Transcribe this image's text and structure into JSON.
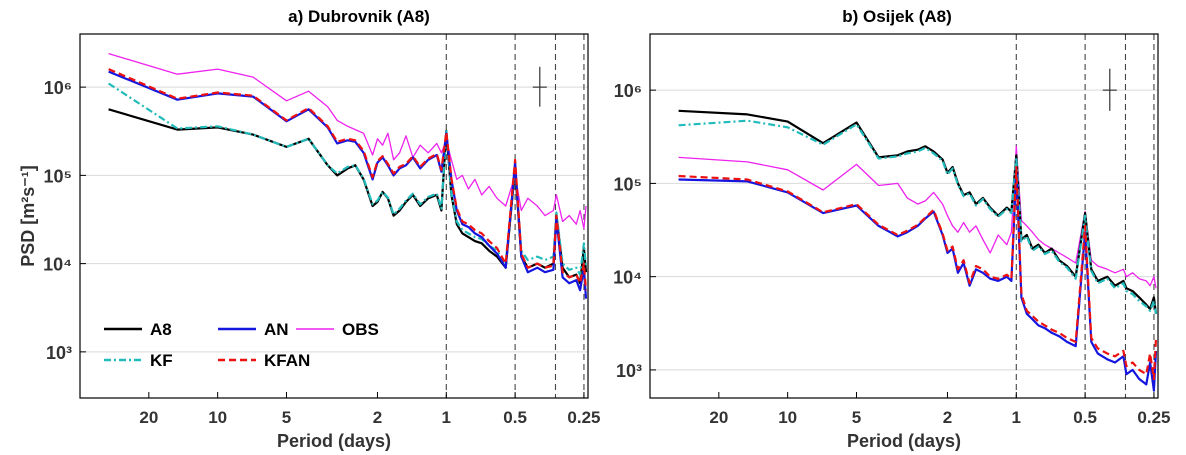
{
  "figure": {
    "ylabel": "PSD [m²s⁻¹]",
    "xlabel": "Period (days)",
    "legend": [
      {
        "label": "A8",
        "color": "#000000",
        "dash": "solid"
      },
      {
        "label": "AN",
        "color": "#1515e0",
        "dash": "solid"
      },
      {
        "label": "OBS",
        "color": "#ee22ee",
        "dash": "solid"
      },
      {
        "label": "KF",
        "color": "#22bbbb",
        "dash": "dashdot"
      },
      {
        "label": "KFAN",
        "color": "#ee1111",
        "dash": "dashed"
      }
    ]
  },
  "chart_data": [
    {
      "type": "line",
      "title": "a) Dubrovnik (A8)",
      "xlabel": "Period (days)",
      "ylabel": "PSD [m²s⁻¹]",
      "x_scale": "log, reversed",
      "y_scale": "log",
      "xlim": [
        40,
        0.24
      ],
      "ylim": [
        300,
        4000000
      ],
      "xticks": [
        20,
        10,
        5,
        2,
        1,
        0.5,
        0.25
      ],
      "xtick_labels": [
        "20",
        "10",
        "5",
        "2",
        "1",
        "0.5",
        "0.25"
      ],
      "yticks": [
        1000,
        10000,
        100000,
        1000000
      ],
      "ytick_labels": [
        "10³",
        "10⁴",
        "10⁵",
        "10⁶"
      ],
      "vlines": [
        1,
        0.5,
        0.333,
        0.25
      ],
      "grid": "horizontal at major y ticks",
      "legend_position": "bottom-left",
      "error_bar": {
        "x": 0.39,
        "y_center": 1000000,
        "y_low": 600000,
        "y_high": 1700000
      },
      "x": [
        30,
        15,
        10,
        7,
        5,
        4,
        3.3,
        3,
        2.7,
        2.5,
        2.3,
        2.1,
        2,
        1.9,
        1.8,
        1.7,
        1.6,
        1.5,
        1.4,
        1.3,
        1.2,
        1.1,
        1.05,
        1,
        0.95,
        0.9,
        0.85,
        0.8,
        0.75,
        0.7,
        0.65,
        0.6,
        0.55,
        0.5,
        0.47,
        0.44,
        0.4,
        0.37,
        0.34,
        0.33,
        0.31,
        0.29,
        0.27,
        0.26,
        0.25,
        0.245
      ],
      "series": [
        {
          "name": "A8",
          "values": [
            560000,
            330000,
            350000,
            290000,
            210000,
            260000,
            130000,
            100000,
            120000,
            130000,
            90000,
            45000,
            50000,
            65000,
            55000,
            35000,
            40000,
            50000,
            60000,
            45000,
            55000,
            60000,
            40000,
            320000,
            60000,
            28000,
            22000,
            20000,
            18000,
            17000,
            14000,
            12000,
            9000,
            120000,
            12000,
            9000,
            10000,
            9000,
            10000,
            35000,
            9000,
            7000,
            7500,
            6000,
            15000,
            8000
          ]
        },
        {
          "name": "KF",
          "values": [
            1100000,
            340000,
            360000,
            290000,
            210000,
            260000,
            130000,
            105000,
            125000,
            130000,
            92000,
            47000,
            52000,
            65000,
            56000,
            36000,
            42000,
            52000,
            62000,
            47000,
            57000,
            62000,
            42000,
            330000,
            62000,
            30000,
            24000,
            22000,
            20000,
            19000,
            16000,
            14000,
            10000,
            125000,
            14000,
            11000,
            12000,
            11000,
            12000,
            38000,
            10000,
            8500,
            9000,
            7500,
            17000,
            9000
          ]
        },
        {
          "name": "AN",
          "values": [
            1500000,
            720000,
            850000,
            780000,
            410000,
            560000,
            350000,
            230000,
            250000,
            240000,
            180000,
            90000,
            140000,
            160000,
            130000,
            100000,
            120000,
            130000,
            160000,
            120000,
            150000,
            170000,
            110000,
            300000,
            90000,
            40000,
            28000,
            26000,
            22000,
            20000,
            16000,
            13000,
            9000,
            140000,
            12000,
            8000,
            9000,
            8000,
            8500,
            32000,
            7000,
            6000,
            6500,
            5000,
            9000,
            4000
          ]
        },
        {
          "name": "KFAN",
          "values": [
            1600000,
            740000,
            870000,
            800000,
            420000,
            580000,
            360000,
            240000,
            260000,
            250000,
            190000,
            95000,
            145000,
            165000,
            135000,
            105000,
            125000,
            135000,
            165000,
            125000,
            155000,
            175000,
            115000,
            310000,
            92000,
            42000,
            30000,
            28000,
            24000,
            22000,
            18000,
            15000,
            10000,
            150000,
            13000,
            9000,
            10000,
            9000,
            9500,
            35000,
            8000,
            7000,
            7500,
            6000,
            10000,
            5000
          ]
        },
        {
          "name": "OBS",
          "values": [
            2400000,
            1400000,
            1600000,
            1300000,
            700000,
            900000,
            600000,
            420000,
            360000,
            330000,
            300000,
            170000,
            260000,
            220000,
            300000,
            150000,
            180000,
            280000,
            160000,
            220000,
            180000,
            230000,
            180000,
            250000,
            150000,
            90000,
            100000,
            70000,
            90000,
            60000,
            75000,
            55000,
            45000,
            100000,
            40000,
            55000,
            45000,
            35000,
            40000,
            60000,
            30000,
            35000,
            28000,
            40000,
            25000,
            45000
          ]
        }
      ]
    },
    {
      "type": "line",
      "title": "b) Osijek (A8)",
      "xlabel": "Period (days)",
      "ylabel": "",
      "x_scale": "log, reversed",
      "y_scale": "log",
      "xlim": [
        40,
        0.24
      ],
      "ylim": [
        500,
        4000000
      ],
      "xticks": [
        20,
        10,
        5,
        2,
        1,
        0.5,
        0.25
      ],
      "xtick_labels": [
        "20",
        "10",
        "5",
        "2",
        "1",
        "0.5",
        "0.25"
      ],
      "yticks": [
        1000,
        10000,
        100000,
        1000000
      ],
      "ytick_labels": [
        "10³",
        "10⁴",
        "10⁵",
        "10⁶"
      ],
      "vlines": [
        1,
        0.5,
        0.333,
        0.25
      ],
      "grid": "horizontal at major y ticks",
      "error_bar": {
        "x": 0.39,
        "y_center": 1000000,
        "y_low": 600000,
        "y_high": 1700000
      },
      "x": [
        30,
        15,
        10,
        7,
        5,
        4,
        3.3,
        3,
        2.7,
        2.5,
        2.3,
        2.1,
        2,
        1.9,
        1.8,
        1.7,
        1.6,
        1.5,
        1.4,
        1.3,
        1.2,
        1.1,
        1.05,
        1,
        0.95,
        0.9,
        0.85,
        0.8,
        0.75,
        0.7,
        0.65,
        0.6,
        0.55,
        0.5,
        0.47,
        0.44,
        0.4,
        0.37,
        0.34,
        0.33,
        0.31,
        0.29,
        0.27,
        0.26,
        0.25,
        0.245
      ],
      "series": [
        {
          "name": "A8",
          "values": [
            600000,
            550000,
            460000,
            270000,
            450000,
            190000,
            200000,
            220000,
            230000,
            250000,
            220000,
            180000,
            130000,
            150000,
            100000,
            75000,
            80000,
            60000,
            70000,
            55000,
            45000,
            55000,
            50000,
            200000,
            25000,
            28000,
            20000,
            22000,
            18000,
            20000,
            15000,
            13000,
            10000,
            48000,
            12000,
            9000,
            10000,
            8000,
            9000,
            7500,
            7000,
            6000,
            5000,
            4500,
            6000,
            4000
          ]
        },
        {
          "name": "KF",
          "values": [
            420000,
            470000,
            400000,
            260000,
            430000,
            185000,
            195000,
            210000,
            220000,
            240000,
            210000,
            175000,
            125000,
            145000,
            97000,
            73000,
            78000,
            58000,
            68000,
            53000,
            44000,
            53000,
            48000,
            190000,
            24000,
            27000,
            19000,
            21000,
            17500,
            19000,
            14500,
            12500,
            9500,
            45000,
            11500,
            8500,
            9500,
            7500,
            8500,
            7000,
            6500,
            5500,
            4800,
            4300,
            5500,
            4000
          ]
        },
        {
          "name": "AN",
          "values": [
            110000,
            105000,
            80000,
            48000,
            58000,
            35000,
            27000,
            30000,
            35000,
            42000,
            50000,
            28000,
            18000,
            20000,
            11000,
            14000,
            8000,
            12000,
            11000,
            9500,
            9000,
            10000,
            9000,
            140000,
            6000,
            4000,
            3500,
            3000,
            2800,
            2500,
            2300,
            2000,
            1800,
            30000,
            2000,
            1500,
            1300,
            1200,
            1400,
            900,
            1000,
            800,
            700,
            1200,
            600,
            1600
          ]
        },
        {
          "name": "KFAN",
          "values": [
            120000,
            110000,
            82000,
            49000,
            60000,
            36000,
            28000,
            31000,
            36000,
            43000,
            52000,
            29000,
            19000,
            21000,
            12000,
            15000,
            8500,
            13000,
            12000,
            10000,
            9500,
            10500,
            9500,
            150000,
            6500,
            4300,
            3800,
            3300,
            3000,
            2700,
            2500,
            2200,
            2000,
            35000,
            2200,
            1700,
            1500,
            1400,
            1600,
            1100,
            1200,
            1000,
            900,
            1500,
            800,
            2200
          ]
        },
        {
          "name": "OBS",
          "values": [
            190000,
            170000,
            140000,
            85000,
            160000,
            95000,
            100000,
            70000,
            60000,
            65000,
            80000,
            60000,
            45000,
            35000,
            30000,
            38000,
            30000,
            35000,
            25000,
            18000,
            28000,
            22000,
            30000,
            250000,
            40000,
            35000,
            30000,
            25000,
            22000,
            20000,
            18000,
            16000,
            14000,
            50000,
            15000,
            13000,
            12000,
            11000,
            12000,
            10000,
            11000,
            9500,
            9000,
            8000,
            10000,
            7500
          ]
        }
      ]
    }
  ]
}
